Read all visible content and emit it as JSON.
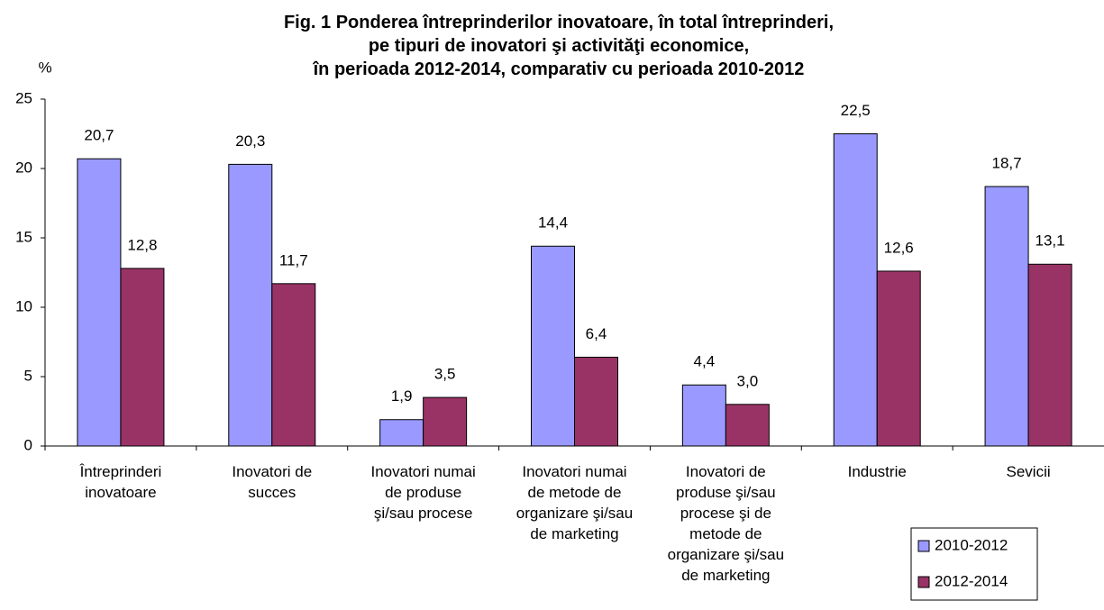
{
  "chart_data": {
    "type": "bar",
    "title": "Fig. 1 Ponderea întreprinderilor inovatoare, în total întreprinderi,\npe tipuri de inovatori şi activităţi economice,\nîn perioada 2012-2014, comparativ cu perioada 2010-2012",
    "ylabel": "%",
    "categories": [
      "Întreprinderi\ninovatoare",
      "Inovatori de\nsucces",
      "Inovatori numai\nde produse\nşi/sau procese",
      "Inovatori numai\nde metode de\norganizare şi/sau\nde marketing",
      "Inovatori de\nproduse şi/sau\nprocese şi de\nmetode de\norganizare şi/sau\nde marketing",
      "Industrie",
      "Sevicii"
    ],
    "series": [
      {
        "name": "2010-2012",
        "color": "#9999ff",
        "values": [
          20.7,
          20.3,
          1.9,
          14.4,
          4.4,
          22.5,
          18.7
        ],
        "value_labels": [
          "20,7",
          "20,3",
          "1,9",
          "14,4",
          "4,4",
          "22,5",
          "18,7"
        ]
      },
      {
        "name": "2012-2014",
        "color": "#993366",
        "values": [
          12.8,
          11.7,
          3.5,
          6.4,
          3.0,
          12.6,
          13.1
        ],
        "value_labels": [
          "12,8",
          "11,7",
          "3,5",
          "6,4",
          "3,0",
          "12,6",
          "13,1"
        ]
      }
    ],
    "ylim": [
      0,
      25
    ],
    "yticks": [
      0,
      5,
      10,
      15,
      20,
      25
    ],
    "grid": false,
    "legend": "lower right"
  }
}
